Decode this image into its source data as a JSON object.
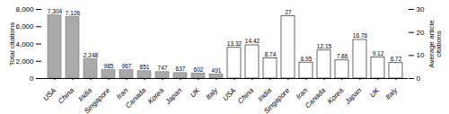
{
  "chart_data": {
    "type": "bar",
    "categories": [
      "USA",
      "China",
      "India",
      "Singapore",
      "Iran",
      "Canada",
      "Korea",
      "Japan",
      "UK",
      "Italy",
      "USA",
      "China",
      "India",
      "Singapore",
      "Iran",
      "Canada",
      "Korea",
      "Japan",
      "UK",
      "Italy"
    ],
    "series": [
      {
        "values": [
          7304,
          7126,
          2248,
          985,
          967,
          851,
          747,
          637,
          602,
          491,
          null,
          null,
          null,
          null,
          null,
          null,
          null,
          null,
          null,
          null
        ],
        "value_labels": [
          "7,304",
          "7,126",
          "2,248",
          "985",
          "967",
          "851",
          "747",
          "637",
          "602",
          "491",
          null,
          null,
          null,
          null,
          null,
          null,
          null,
          null,
          null,
          null
        ],
        "color": "#aaaaaa"
      },
      {
        "values": [
          null,
          null,
          null,
          null,
          null,
          null,
          null,
          null,
          null,
          null,
          13.32,
          14.42,
          8.74,
          27,
          6.95,
          12.15,
          7.86,
          16.76,
          9.12,
          6.72
        ],
        "color": "#ffffff",
        "axis": "y2"
      }
    ],
    "ylabel": "Total citations",
    "y2label": "Average article\ncitations",
    "ylim": [
      0,
      8000
    ],
    "yticks": [
      0,
      {
        "value": 2000,
        "label": "2,000"
      },
      {
        "value": 4000,
        "label": "4,000"
      },
      {
        "value": 6000,
        "label": "6,000"
      },
      {
        "value": 8000,
        "label": "8,000"
      }
    ],
    "y2lim": [
      0,
      30
    ],
    "y2ticks": [
      0,
      10,
      20,
      30
    ],
    "data_labels": true,
    "grid": false
  }
}
